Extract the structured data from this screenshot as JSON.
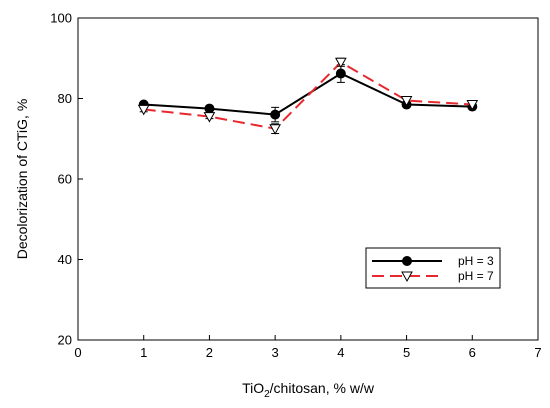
{
  "chart_data": {
    "type": "line",
    "title": "",
    "xlabel": {
      "prefix": "TiO",
      "subscript": "2",
      "suffix": "/chitosan, % w/w"
    },
    "ylabel": "Decolorization of CTiG, %",
    "xlim": [
      0,
      7
    ],
    "ylim": [
      20,
      100
    ],
    "xticks": [
      "0",
      "1",
      "2",
      "3",
      "4",
      "5",
      "6",
      "7"
    ],
    "yticks": [
      "20",
      "40",
      "60",
      "80",
      "100"
    ],
    "grid": false,
    "legend_position": "lower-right",
    "x": [
      1,
      2,
      3,
      4,
      5,
      6
    ],
    "series": [
      {
        "name": "pH = 3",
        "values": [
          78.5,
          77.5,
          76.0,
          86.2,
          78.5,
          78.0
        ],
        "error": [
          0.5,
          0.5,
          1.8,
          2.2,
          0.6,
          0.5
        ],
        "color": "#000000",
        "line_style": "solid",
        "marker": "filled-circle"
      },
      {
        "name": "pH = 7",
        "values": [
          77.3,
          75.5,
          72.5,
          89.0,
          79.5,
          78.5
        ],
        "error": [
          0.6,
          0.5,
          1.2,
          1.0,
          0.8,
          0.5
        ],
        "color": "#e8282f",
        "line_style": "dashed",
        "marker": "open-triangle-down"
      }
    ]
  }
}
